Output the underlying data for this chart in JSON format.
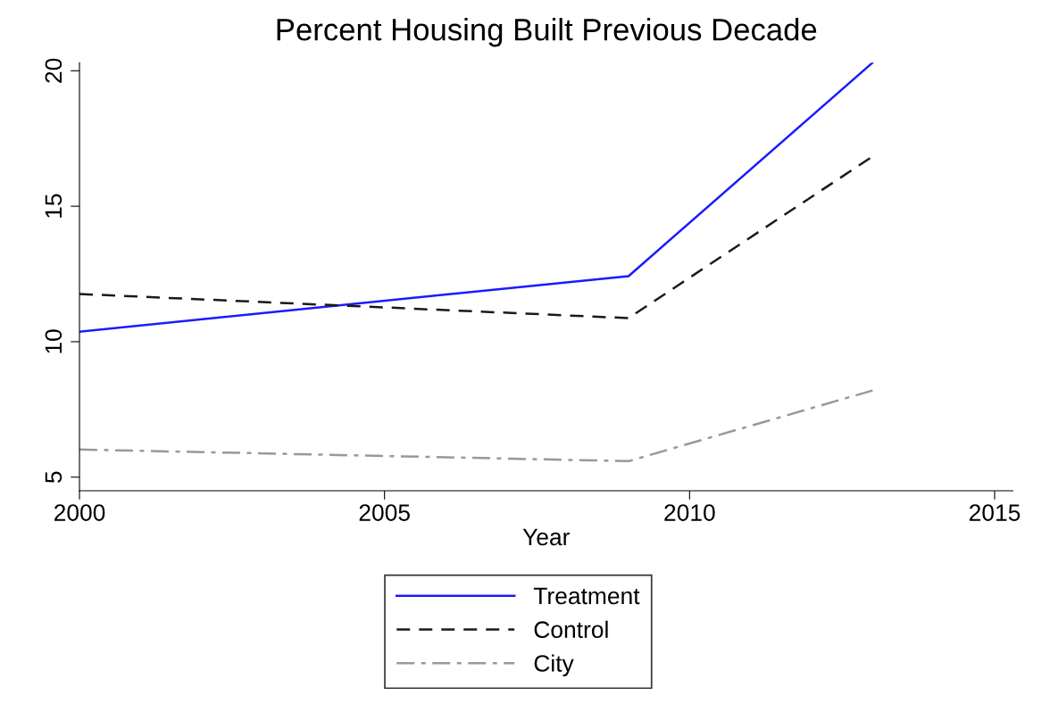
{
  "chart_data": {
    "type": "line",
    "title": "Percent Housing Built Previous Decade",
    "xlabel": "Year",
    "x": [
      2000,
      2009,
      2013
    ],
    "series": [
      {
        "name": "Treatment",
        "color": "#1a1aff",
        "values": [
          10.37,
          12.42,
          20.3
        ],
        "line_style": "solid"
      },
      {
        "name": "Control",
        "color": "#1a1a1a",
        "values": [
          11.76,
          10.87,
          16.84
        ],
        "line_style": "dashed"
      },
      {
        "name": "City",
        "color": "#999999",
        "values": [
          6.02,
          5.59,
          8.2
        ],
        "line_style": "dashdot"
      }
    ],
    "xlim": [
      2000,
      2015.3
    ],
    "xticks": [
      2000,
      2005,
      2010,
      2015
    ],
    "ylim": [
      4.5,
      20.3
    ],
    "yticks": [
      5,
      10,
      15,
      20
    ],
    "grid": false,
    "legend": "bottom",
    "marker": "none"
  }
}
